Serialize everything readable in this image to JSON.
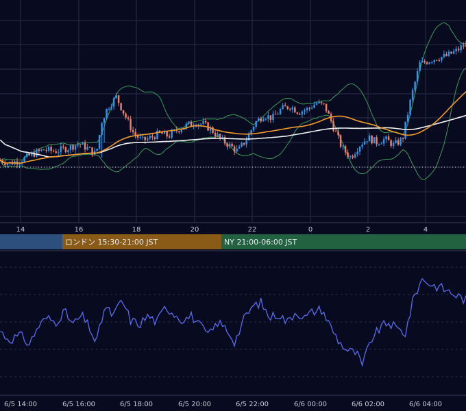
{
  "colors": {
    "background": "#080a20",
    "grid": "#2a2f4a",
    "up_candle": "#2f95e8",
    "down_candle": "#ef7f68",
    "bollinger": "#3b9e55",
    "ma_fast": "#f39c2b",
    "ma_slow": "#f2f2f2",
    "osc_line": "#5b6df0",
    "session_asia": "#2c4f7d",
    "session_london": "#8a5a17",
    "session_ny": "#236241"
  },
  "main_axis": {
    "hour_ticks": [
      "14",
      "16",
      "18",
      "20",
      "22",
      "0",
      "2",
      "4"
    ]
  },
  "sessions": [
    {
      "name": "asia",
      "label": ""
    },
    {
      "name": "london",
      "label": "ロンドン 15:30-21:00 JST"
    },
    {
      "name": "ny",
      "label": "NY 21:00-06:00 JST"
    }
  ],
  "sub_axis": {
    "date_ticks": [
      "6/5 14:00",
      "6/5 16:00",
      "6/5 18:00",
      "6/5 20:00",
      "6/5 22:00",
      "6/6 00:00",
      "6/6 02:00",
      "6/6 04:00"
    ]
  },
  "chart_data": [
    {
      "type": "candlestick",
      "x_ticks": [
        "14",
        "16",
        "18",
        "20",
        "22",
        "0",
        "2",
        "4"
      ],
      "x_range_hours": [
        13.3,
        5.6
      ],
      "close_path": [
        [
          13.3,
          0.3
        ],
        [
          13.6,
          0.28
        ],
        [
          14.0,
          0.3
        ],
        [
          14.4,
          0.34
        ],
        [
          14.8,
          0.37
        ],
        [
          15.2,
          0.36
        ],
        [
          15.6,
          0.38
        ],
        [
          16.0,
          0.41
        ],
        [
          16.3,
          0.38
        ],
        [
          16.6,
          0.34
        ],
        [
          16.8,
          0.56
        ],
        [
          17.0,
          0.65
        ],
        [
          17.3,
          0.72
        ],
        [
          17.6,
          0.6
        ],
        [
          17.9,
          0.48
        ],
        [
          18.2,
          0.43
        ],
        [
          18.5,
          0.45
        ],
        [
          18.8,
          0.48
        ],
        [
          19.1,
          0.46
        ],
        [
          19.4,
          0.5
        ],
        [
          19.7,
          0.53
        ],
        [
          20.0,
          0.55
        ],
        [
          20.3,
          0.54
        ],
        [
          20.6,
          0.5
        ],
        [
          20.9,
          0.44
        ],
        [
          21.2,
          0.4
        ],
        [
          21.5,
          0.36
        ],
        [
          21.8,
          0.44
        ],
        [
          22.1,
          0.55
        ],
        [
          22.4,
          0.6
        ],
        [
          22.7,
          0.58
        ],
        [
          23.0,
          0.64
        ],
        [
          23.3,
          0.66
        ],
        [
          23.6,
          0.62
        ],
        [
          23.9,
          0.64
        ],
        [
          0.2,
          0.68
        ],
        [
          0.5,
          0.66
        ],
        [
          0.8,
          0.52
        ],
        [
          1.1,
          0.38
        ],
        [
          1.4,
          0.32
        ],
        [
          1.7,
          0.4
        ],
        [
          2.0,
          0.45
        ],
        [
          2.3,
          0.42
        ],
        [
          2.6,
          0.44
        ],
        [
          2.9,
          0.4
        ],
        [
          3.2,
          0.44
        ],
        [
          3.5,
          0.72
        ],
        [
          3.8,
          0.94
        ],
        [
          4.1,
          0.96
        ],
        [
          4.4,
          0.98
        ],
        [
          4.7,
          0.99
        ],
        [
          5.0,
          1.02
        ],
        [
          5.3,
          1.06
        ],
        [
          5.6,
          1.05
        ]
      ],
      "indicators": [
        "Bollinger Bands",
        "Moving Average (fast)",
        "Moving Average (slow)"
      ]
    },
    {
      "type": "line",
      "x_ticks": [
        "6/5 14:00",
        "6/5 16:00",
        "6/5 18:00",
        "6/5 20:00",
        "6/5 22:00",
        "6/6 00:00",
        "6/6 02:00",
        "6/6 04:00"
      ],
      "series_points": [
        [
          13.3,
          0.48
        ],
        [
          13.6,
          0.4
        ],
        [
          14.0,
          0.44
        ],
        [
          14.3,
          0.36
        ],
        [
          14.6,
          0.52
        ],
        [
          14.9,
          0.6
        ],
        [
          15.2,
          0.56
        ],
        [
          15.5,
          0.66
        ],
        [
          15.8,
          0.54
        ],
        [
          16.1,
          0.62
        ],
        [
          16.4,
          0.5
        ],
        [
          16.6,
          0.36
        ],
        [
          16.9,
          0.7
        ],
        [
          17.2,
          0.62
        ],
        [
          17.5,
          0.76
        ],
        [
          17.8,
          0.58
        ],
        [
          18.1,
          0.54
        ],
        [
          18.4,
          0.62
        ],
        [
          18.7,
          0.56
        ],
        [
          19.0,
          0.7
        ],
        [
          19.3,
          0.64
        ],
        [
          19.6,
          0.58
        ],
        [
          19.9,
          0.62
        ],
        [
          20.2,
          0.52
        ],
        [
          20.5,
          0.44
        ],
        [
          20.8,
          0.56
        ],
        [
          21.1,
          0.5
        ],
        [
          21.4,
          0.38
        ],
        [
          21.7,
          0.58
        ],
        [
          22.0,
          0.7
        ],
        [
          22.3,
          0.74
        ],
        [
          22.6,
          0.6
        ],
        [
          22.9,
          0.64
        ],
        [
          23.2,
          0.56
        ],
        [
          23.5,
          0.66
        ],
        [
          23.8,
          0.6
        ],
        [
          0.1,
          0.66
        ],
        [
          0.4,
          0.68
        ],
        [
          0.7,
          0.52
        ],
        [
          1.0,
          0.38
        ],
        [
          1.3,
          0.3
        ],
        [
          1.6,
          0.28
        ],
        [
          1.8,
          0.16
        ],
        [
          2.1,
          0.4
        ],
        [
          2.4,
          0.5
        ],
        [
          2.7,
          0.56
        ],
        [
          3.0,
          0.5
        ],
        [
          3.3,
          0.46
        ],
        [
          3.6,
          0.8
        ],
        [
          3.9,
          0.96
        ],
        [
          4.2,
          0.9
        ],
        [
          4.5,
          0.88
        ],
        [
          4.8,
          0.84
        ],
        [
          5.1,
          0.8
        ],
        [
          5.4,
          0.76
        ],
        [
          5.6,
          0.82
        ]
      ]
    }
  ]
}
